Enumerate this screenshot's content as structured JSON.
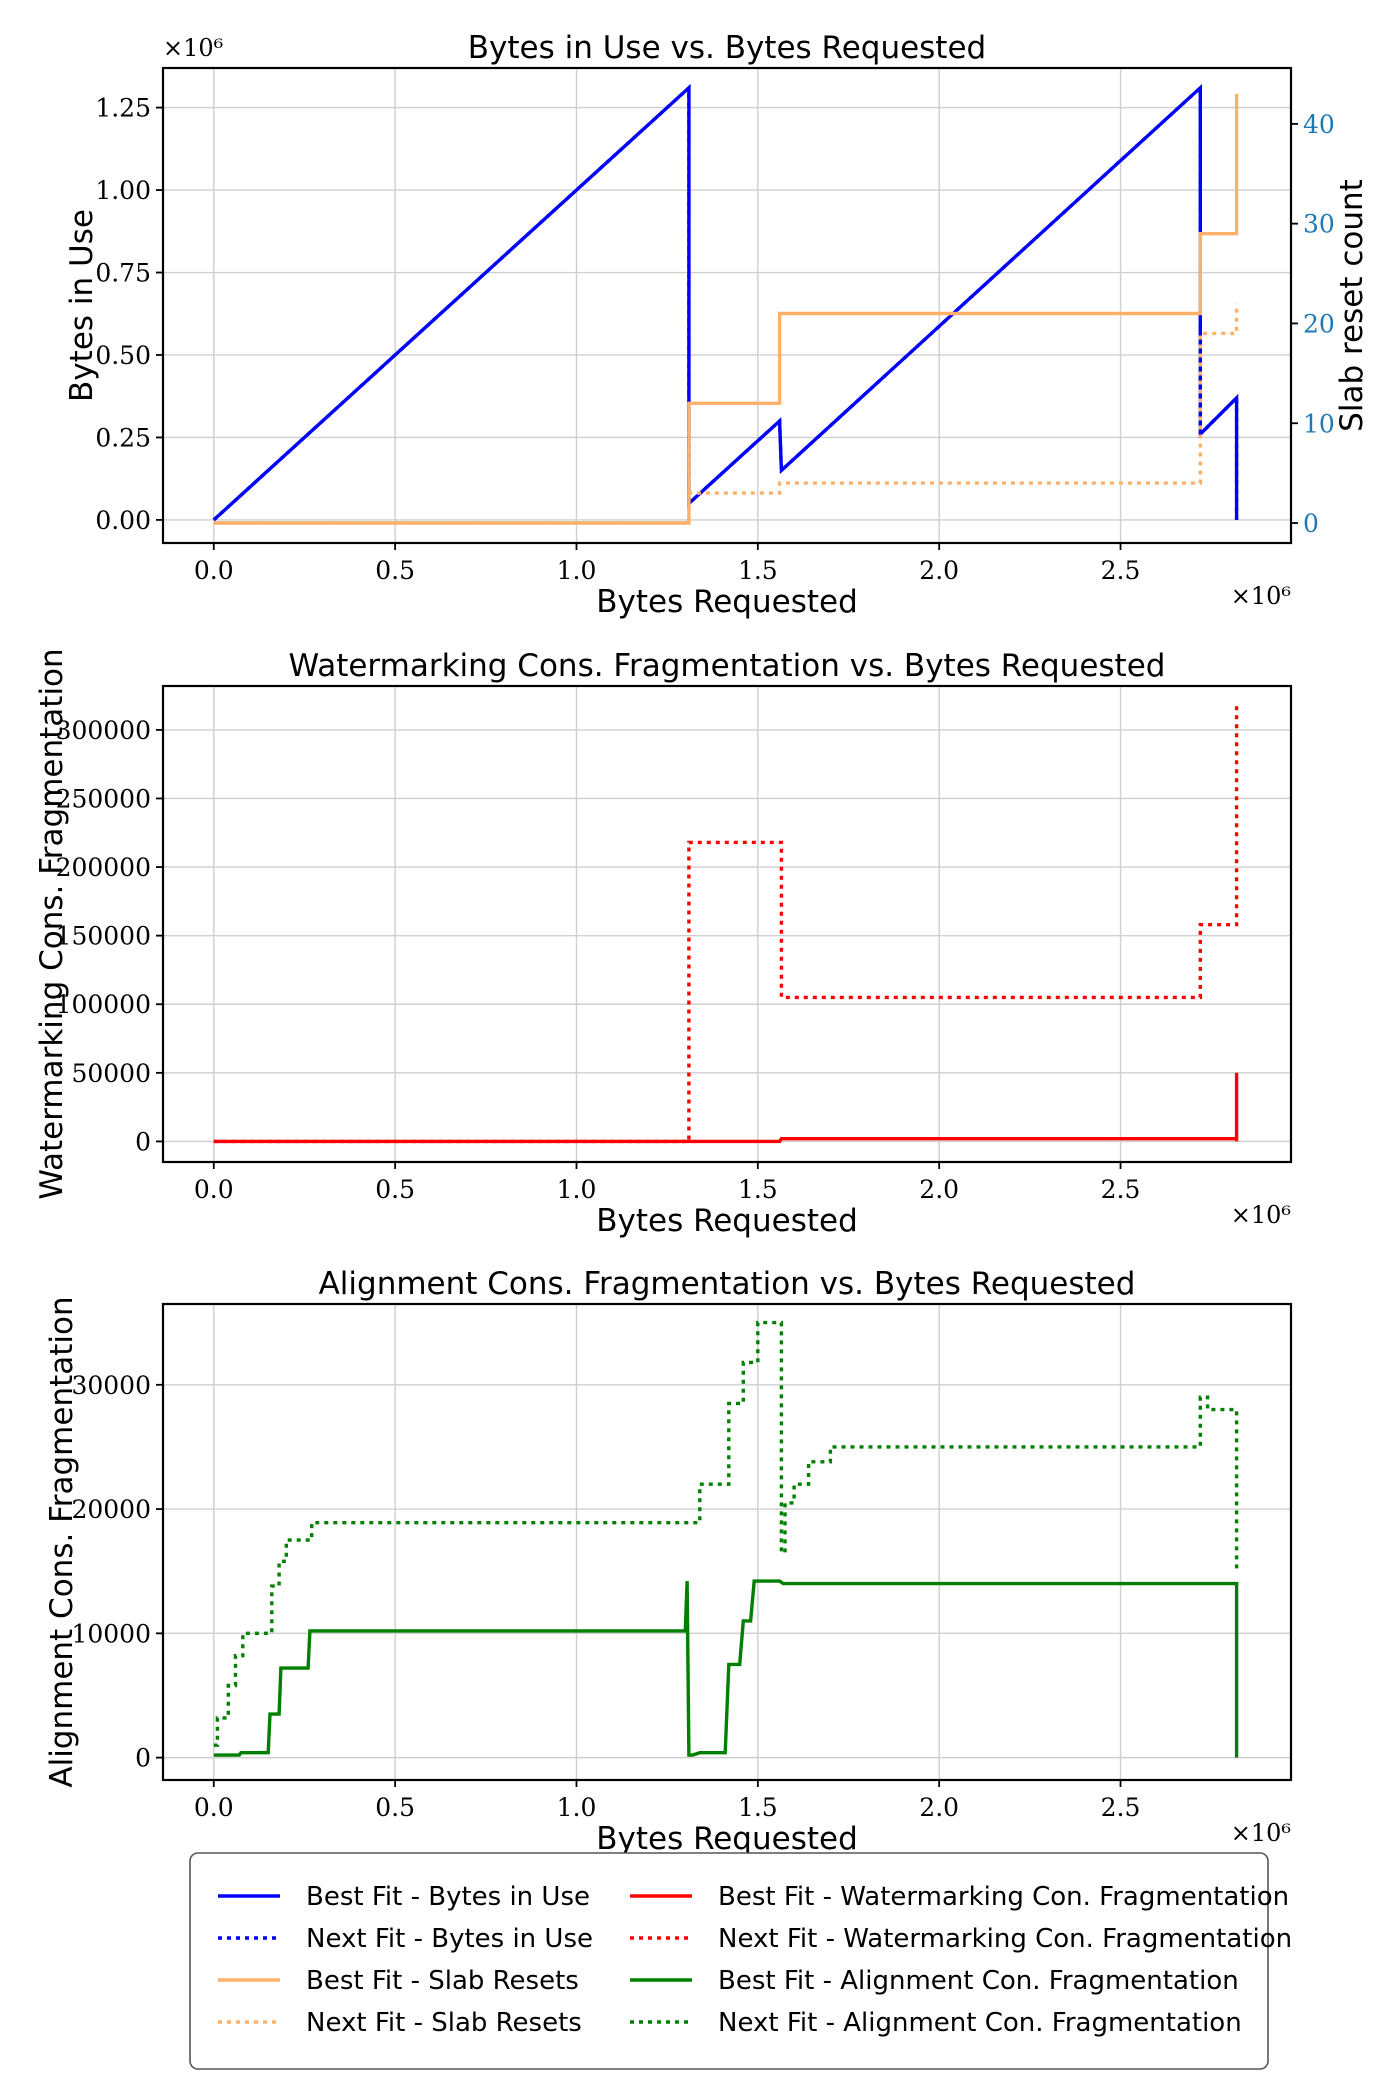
{
  "chart_data": [
    {
      "type": "line",
      "title": "Bytes in Use vs. Bytes Requested",
      "xlabel": "Bytes Requested",
      "ylabel": "Bytes in Use",
      "ylabel_right": "Slab reset count",
      "x_multiplier": "×10⁶",
      "y_multiplier": "×10⁶",
      "xlim": [
        -0.14,
        2.97
      ],
      "ylim": [
        -0.07,
        1.37
      ],
      "ylim_right": [
        -2,
        45.6
      ],
      "x_ticks": [
        "0.0",
        "0.5",
        "1.0",
        "1.5",
        "2.0",
        "2.5"
      ],
      "x_tick_values": [
        0.0,
        0.5,
        1.0,
        1.5,
        2.0,
        2.5
      ],
      "y_ticks": [
        "0.00",
        "0.25",
        "0.50",
        "0.75",
        "1.00",
        "1.25"
      ],
      "y_tick_values": [
        0.0,
        0.25,
        0.5,
        0.75,
        1.0,
        1.25
      ],
      "y_right_ticks": [
        "0",
        "10",
        "20",
        "30",
        "40"
      ],
      "y_right_tick_values": [
        0,
        10,
        20,
        30,
        40
      ],
      "grid": true,
      "series": [
        {
          "name": "Best Fit - Bytes in Use",
          "axis": "left",
          "color": "#0000ff",
          "dash": "solid",
          "x": [
            0.0,
            1.31,
            1.31,
            1.56,
            1.565,
            2.72,
            2.72,
            2.82,
            2.82
          ],
          "y": [
            0.0,
            1.31,
            0.05,
            0.3,
            0.15,
            1.31,
            0.26,
            0.37,
            0.0
          ]
        },
        {
          "name": "Next Fit - Bytes in Use",
          "axis": "left",
          "color": "#0000ff",
          "dash": "dotted",
          "x": [
            0.0,
            1.31,
            1.31,
            1.56,
            1.565,
            2.72,
            2.72,
            2.82,
            2.82
          ],
          "y": [
            0.0,
            1.31,
            0.05,
            0.3,
            0.15,
            1.31,
            0.26,
            0.37,
            0.0
          ]
        },
        {
          "name": "Best Fit - Slab Resets",
          "axis": "right",
          "color": "#ffb06a",
          "dash": "solid",
          "step": true,
          "x": [
            0.0,
            1.31,
            1.56,
            2.72,
            2.82,
            2.82
          ],
          "y": [
            0,
            12,
            21,
            29,
            43,
            43
          ]
        },
        {
          "name": "Next Fit - Slab Resets",
          "axis": "right",
          "color": "#ffb06a",
          "dash": "dotted",
          "step": true,
          "x": [
            0.0,
            1.31,
            1.56,
            2.72,
            2.82,
            2.82
          ],
          "y": [
            0,
            3,
            4,
            19,
            22,
            22
          ]
        }
      ]
    },
    {
      "type": "line",
      "title": "Watermarking Cons. Fragmentation vs. Bytes Requested",
      "xlabel": "Bytes Requested",
      "ylabel": "Watermarking Cons. Fragmentation",
      "x_multiplier": "×10⁶",
      "xlim": [
        -0.14,
        2.97
      ],
      "ylim": [
        -15000,
        332000
      ],
      "x_ticks": [
        "0.0",
        "0.5",
        "1.0",
        "1.5",
        "2.0",
        "2.5"
      ],
      "x_tick_values": [
        0.0,
        0.5,
        1.0,
        1.5,
        2.0,
        2.5
      ],
      "y_ticks": [
        "0",
        "50000",
        "100000",
        "150000",
        "200000",
        "250000",
        "300000"
      ],
      "y_tick_values": [
        0,
        50000,
        100000,
        150000,
        200000,
        250000,
        300000
      ],
      "grid": true,
      "series": [
        {
          "name": "Best Fit - Watermarking Con. Fragmentation",
          "color": "#ff0000",
          "dash": "solid",
          "x": [
            0.0,
            1.56,
            1.565,
            2.82,
            2.82,
            2.82
          ],
          "y": [
            0,
            0,
            2000,
            2000,
            50000,
            0
          ]
        },
        {
          "name": "Next Fit - Watermarking Con. Fragmentation",
          "color": "#ff0000",
          "dash": "dotted",
          "step": true,
          "x": [
            0.0,
            1.31,
            1.565,
            2.72,
            2.82,
            2.82
          ],
          "y": [
            0,
            218000,
            105000,
            158000,
            320000,
            320000
          ]
        }
      ]
    },
    {
      "type": "line",
      "title": "Alignment Cons. Fragmentation vs. Bytes Requested",
      "xlabel": "Bytes Requested",
      "ylabel": "Alignment Cons. Fragmentation",
      "x_multiplier": "×10⁶",
      "xlim": [
        -0.14,
        2.97
      ],
      "ylim": [
        -1800,
        36500
      ],
      "x_ticks": [
        "0.0",
        "0.5",
        "1.0",
        "1.5",
        "2.0",
        "2.5"
      ],
      "x_tick_values": [
        0.0,
        0.5,
        1.0,
        1.5,
        2.0,
        2.5
      ],
      "y_ticks": [
        "0",
        "10000",
        "20000",
        "30000"
      ],
      "y_tick_values": [
        0,
        10000,
        20000,
        30000
      ],
      "grid": true,
      "series": [
        {
          "name": "Best Fit - Alignment Con. Fragmentation",
          "color": "#008000",
          "dash": "solid",
          "x": [
            0.0,
            0.07,
            0.075,
            0.15,
            0.155,
            0.18,
            0.185,
            0.26,
            0.265,
            1.3,
            1.305,
            1.31,
            1.32,
            1.34,
            1.36,
            1.41,
            1.42,
            1.45,
            1.46,
            1.48,
            1.49,
            1.52,
            1.56,
            1.57,
            2.82,
            2.82
          ],
          "y": [
            200,
            200,
            400,
            400,
            3500,
            3500,
            7200,
            7200,
            10200,
            10200,
            14200,
            200,
            200,
            400,
            400,
            400,
            7500,
            7500,
            11000,
            11000,
            14200,
            14200,
            14200,
            14000,
            14000,
            0
          ]
        },
        {
          "name": "Next Fit - Alignment Con. Fragmentation",
          "color": "#008000",
          "dash": "dotted",
          "step": true,
          "x": [
            0.0,
            0.01,
            0.04,
            0.06,
            0.08,
            0.16,
            0.18,
            0.2,
            0.27,
            0.3,
            1.34,
            1.35,
            1.42,
            1.43,
            1.46,
            1.47,
            1.5,
            1.565,
            1.575,
            1.6,
            1.64,
            1.7,
            2.71,
            2.72,
            2.74,
            2.82,
            2.82
          ],
          "y": [
            1000,
            3200,
            5800,
            8200,
            10000,
            13800,
            15800,
            17500,
            18900,
            18900,
            22000,
            22000,
            28500,
            28500,
            31800,
            31800,
            35000,
            16500,
            20500,
            22000,
            23800,
            25000,
            25000,
            29000,
            28000,
            28000,
            15000
          ]
        }
      ]
    }
  ],
  "legend": {
    "items": [
      {
        "label": "Best Fit - Bytes in Use",
        "color": "#0000ff",
        "dash": "solid"
      },
      {
        "label": "Next Fit - Bytes in Use",
        "color": "#0000ff",
        "dash": "dotted"
      },
      {
        "label": "Best Fit - Slab Resets",
        "color": "#ffb06a",
        "dash": "solid"
      },
      {
        "label": "Next Fit - Slab Resets",
        "color": "#ffb06a",
        "dash": "dotted"
      },
      {
        "label": "Best Fit - Watermarking Con. Fragmentation",
        "color": "#ff0000",
        "dash": "solid"
      },
      {
        "label": "Next Fit - Watermarking Con. Fragmentation",
        "color": "#ff0000",
        "dash": "dotted"
      },
      {
        "label": "Best Fit - Alignment Con. Fragmentation",
        "color": "#008000",
        "dash": "solid"
      },
      {
        "label": "Next Fit - Alignment Con. Fragmentation",
        "color": "#008000",
        "dash": "dotted"
      }
    ]
  }
}
